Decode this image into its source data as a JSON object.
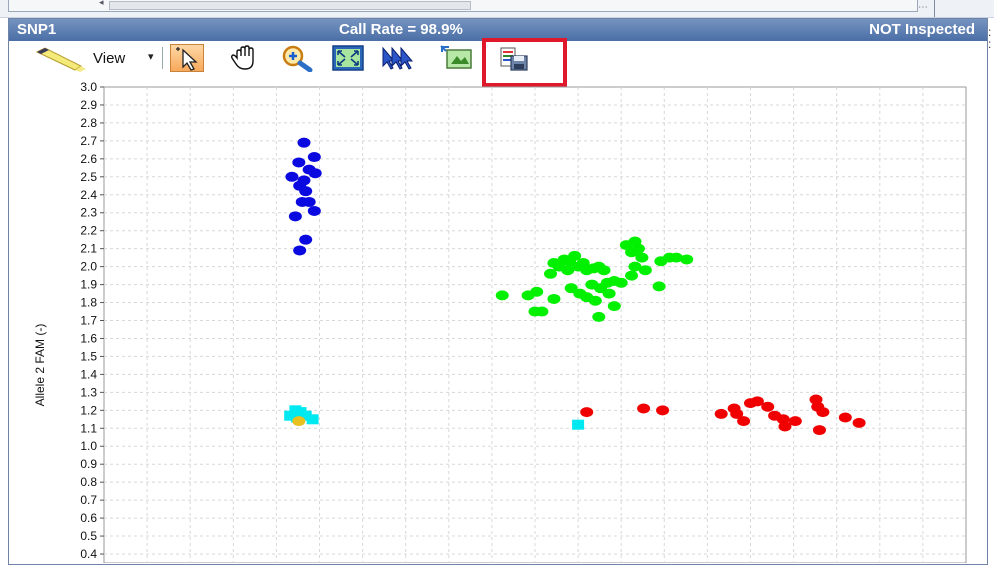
{
  "panel": {
    "title_left": "SNP1",
    "title_center": "Call Rate = 98.9%",
    "title_right": "NOT Inspected"
  },
  "toolbar": {
    "view_label": "View",
    "view_caret": "▾",
    "icons": [
      "highlighter-icon",
      "pointer-icon",
      "hand-pan-icon",
      "zoom-icon",
      "fit-to-window-icon",
      "select-arrows-icon",
      "export-image-icon",
      "save-icon"
    ]
  },
  "colors": {
    "title_bar": "#4a6ea6",
    "cluster_blue": "#0a0ae0",
    "cluster_green": "#00f000",
    "cluster_red": "#f00000",
    "cluster_cyan": "#00e8f0",
    "highlight": "#e0182b"
  },
  "chart_data": {
    "type": "scatter",
    "ylabel": "Allele 2 FAM (-)",
    "xlabel": "",
    "ylim": [
      0.35,
      3.0
    ],
    "xlim": [
      0.0,
      1.0
    ],
    "yticks": [
      "0.4",
      "0.5",
      "0.6",
      "0.7",
      "0.8",
      "0.9",
      "1.0",
      "1.1",
      "1.2",
      "1.3",
      "1.4",
      "1.5",
      "1.6",
      "1.7",
      "1.8",
      "1.9",
      "2.0",
      "2.1",
      "2.2",
      "2.3",
      "2.4",
      "2.5",
      "2.6",
      "2.7",
      "2.8",
      "2.9",
      "3.0"
    ],
    "grid": true,
    "series": [
      {
        "color": "#0a0ae0",
        "shape": "circle",
        "points": [
          [
            0.232,
            2.69
          ],
          [
            0.244,
            2.61
          ],
          [
            0.226,
            2.58
          ],
          [
            0.238,
            2.54
          ],
          [
            0.245,
            2.52
          ],
          [
            0.218,
            2.5
          ],
          [
            0.232,
            2.48
          ],
          [
            0.227,
            2.45
          ],
          [
            0.234,
            2.42
          ],
          [
            0.23,
            2.36
          ],
          [
            0.238,
            2.36
          ],
          [
            0.244,
            2.31
          ],
          [
            0.222,
            2.28
          ],
          [
            0.234,
            2.15
          ],
          [
            0.227,
            2.09
          ]
        ]
      },
      {
        "color": "#00f000",
        "shape": "circle",
        "points": [
          [
            0.462,
            1.84
          ],
          [
            0.492,
            1.84
          ],
          [
            0.502,
            1.86
          ],
          [
            0.522,
            1.82
          ],
          [
            0.5,
            1.75
          ],
          [
            0.508,
            1.75
          ],
          [
            0.518,
            1.96
          ],
          [
            0.522,
            2.02
          ],
          [
            0.528,
            2.0
          ],
          [
            0.534,
            2.04
          ],
          [
            0.54,
            2.03
          ],
          [
            0.546,
            2.06
          ],
          [
            0.538,
            1.98
          ],
          [
            0.55,
            2.0
          ],
          [
            0.556,
            2.02
          ],
          [
            0.56,
            1.98
          ],
          [
            0.568,
            1.99
          ],
          [
            0.574,
            2.0
          ],
          [
            0.58,
            1.98
          ],
          [
            0.566,
            1.9
          ],
          [
            0.576,
            1.88
          ],
          [
            0.584,
            1.91
          ],
          [
            0.592,
            1.92
          ],
          [
            0.6,
            1.91
          ],
          [
            0.542,
            1.88
          ],
          [
            0.552,
            1.85
          ],
          [
            0.56,
            1.83
          ],
          [
            0.57,
            1.81
          ],
          [
            0.586,
            1.85
          ],
          [
            0.592,
            1.78
          ],
          [
            0.574,
            1.72
          ],
          [
            0.616,
            2.14
          ],
          [
            0.606,
            2.12
          ],
          [
            0.62,
            2.1
          ],
          [
            0.612,
            2.08
          ],
          [
            0.624,
            2.05
          ],
          [
            0.616,
            2.0
          ],
          [
            0.628,
            1.98
          ],
          [
            0.612,
            1.95
          ],
          [
            0.646,
            2.03
          ],
          [
            0.656,
            2.05
          ],
          [
            0.664,
            2.05
          ],
          [
            0.676,
            2.04
          ],
          [
            0.644,
            1.89
          ]
        ]
      },
      {
        "color": "#f00000",
        "shape": "circle",
        "points": [
          [
            0.56,
            1.19
          ],
          [
            0.626,
            1.21
          ],
          [
            0.648,
            1.2
          ],
          [
            0.716,
            1.18
          ],
          [
            0.731,
            1.21
          ],
          [
            0.742,
            1.14
          ],
          [
            0.734,
            1.18
          ],
          [
            0.75,
            1.24
          ],
          [
            0.758,
            1.25
          ],
          [
            0.77,
            1.22
          ],
          [
            0.778,
            1.17
          ],
          [
            0.788,
            1.15
          ],
          [
            0.79,
            1.11
          ],
          [
            0.802,
            1.14
          ],
          [
            0.826,
            1.26
          ],
          [
            0.828,
            1.22
          ],
          [
            0.834,
            1.19
          ],
          [
            0.83,
            1.09
          ],
          [
            0.86,
            1.16
          ],
          [
            0.876,
            1.13
          ]
        ]
      },
      {
        "color": "#00e8f0",
        "shape": "square",
        "points": [
          [
            0.216,
            1.17
          ],
          [
            0.222,
            1.2
          ],
          [
            0.228,
            1.19
          ],
          [
            0.224,
            1.16
          ],
          [
            0.234,
            1.17
          ],
          [
            0.242,
            1.15
          ],
          [
            0.55,
            1.12
          ]
        ]
      },
      {
        "color": "#e8c020",
        "shape": "circle",
        "points": [
          [
            0.226,
            1.14
          ]
        ]
      }
    ]
  }
}
